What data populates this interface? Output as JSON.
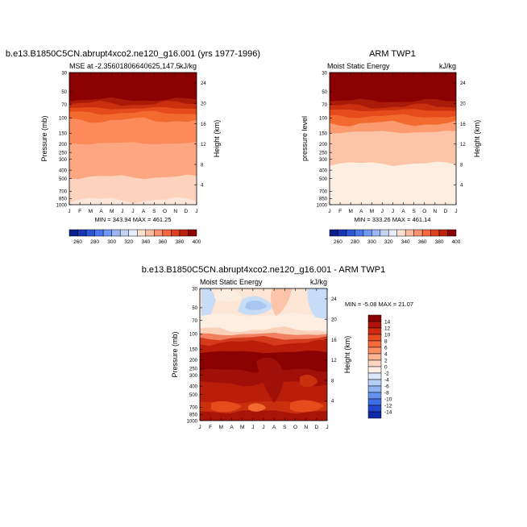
{
  "chart_data": [
    {
      "type": "heatmap",
      "title": "b.e13.B1850C5CN.abrupt4xco2.ne120_g16.001 (yrs 1977-1996)",
      "subtitle_left": "MSE at -2.35601806640625,147.5",
      "subtitle_right": "kJ/kg",
      "ylabel": "Pressure (mb)",
      "ylabel_right": "Height (km)",
      "x_ticks": [
        "J",
        "F",
        "M",
        "A",
        "M",
        "J",
        "J",
        "A",
        "S",
        "O",
        "N",
        "D",
        "J"
      ],
      "y_ticks": [
        "30",
        "50",
        "70",
        "100",
        "150",
        "200",
        "250",
        "300",
        "400",
        "500",
        "700",
        "850",
        "1000"
      ],
      "height_ticks": [
        "24",
        "20",
        "16",
        "12",
        "8",
        "4"
      ],
      "stats": "MIN = 343.94 MAX = 461.25",
      "colorbar_ticks": [
        "260",
        "280",
        "300",
        "320",
        "340",
        "360",
        "380",
        "400"
      ],
      "layers": [
        {
          "top": 0,
          "color": "#8b0000"
        },
        {
          "top": 0.205,
          "color": "#aa1a08"
        },
        {
          "top": 0.235,
          "color": "#c8300e"
        },
        {
          "top": 0.27,
          "color": "#e44c1b"
        },
        {
          "top": 0.305,
          "color": "#f26a2e"
        },
        {
          "top": 0.36,
          "color": "#fc8a5a"
        },
        {
          "top": 0.535,
          "color": "#fda782"
        },
        {
          "top": 0.79,
          "color": "#fdd3bd"
        },
        {
          "top": 0.965,
          "color": "#fde7db"
        }
      ]
    },
    {
      "type": "heatmap",
      "title": "ARM TWP1",
      "subtitle_left": "Moist Static Energy",
      "subtitle_right": "kJ/kg",
      "ylabel": "pressure level",
      "ylabel_right": "Height (km)",
      "x_ticks": [
        "J",
        "F",
        "M",
        "A",
        "M",
        "J",
        "J",
        "A",
        "S",
        "O",
        "N",
        "D",
        "J"
      ],
      "y_ticks": [
        "30",
        "50",
        "70",
        "100",
        "150",
        "200",
        "250",
        "300",
        "400",
        "500",
        "700",
        "850",
        "1000"
      ],
      "height_ticks": [
        "24",
        "20",
        "16",
        "12",
        "8",
        "4"
      ],
      "stats": "MIN = 333.26 MAX = 461.14",
      "colorbar_ticks": [
        "260",
        "280",
        "300",
        "320",
        "340",
        "360",
        "380",
        "400"
      ],
      "layers": [
        {
          "top": 0,
          "color": "#8b0000"
        },
        {
          "top": 0.215,
          "color": "#aa1a08"
        },
        {
          "top": 0.255,
          "color": "#c8300e"
        },
        {
          "top": 0.285,
          "color": "#e44c1b"
        },
        {
          "top": 0.33,
          "color": "#f26a2e"
        },
        {
          "top": 0.385,
          "color": "#fc9a70"
        },
        {
          "top": 0.45,
          "color": "#fdc5a8"
        },
        {
          "top": 0.69,
          "color": "#fdeee2"
        }
      ]
    },
    {
      "type": "heatmap",
      "title": "b.e13.B1850C5CN.abrupt4xco2.ne120_g16.001 - ARM TWP1",
      "subtitle_left": "Moist Static Energy",
      "subtitle_right": "kJ/kg",
      "ylabel": "Pressure (mb)",
      "ylabel_right": "Height (km)",
      "x_ticks": [
        "J",
        "F",
        "M",
        "A",
        "M",
        "J",
        "J",
        "A",
        "S",
        "O",
        "N",
        "D",
        "J"
      ],
      "y_ticks": [
        "30",
        "50",
        "70",
        "100",
        "150",
        "200",
        "250",
        "300",
        "400",
        "500",
        "700",
        "850",
        "1000"
      ],
      "height_ticks": [
        "24",
        "20",
        "16",
        "12",
        "8",
        "4"
      ],
      "stats": "MIN =  -5.08 MAX =  21.07",
      "colorbar_ticks": [
        "14",
        "12",
        "10",
        "8",
        "6",
        "4",
        "2",
        "0",
        "-2",
        "-4",
        "-6",
        "-8",
        "-10",
        "-12",
        "-14"
      ],
      "layers": [
        {
          "top": 0,
          "color": "#fde6d6"
        },
        {
          "top": 0.2,
          "color": "#fdeee2"
        },
        {
          "top": 0.31,
          "color": "#fbd0b9"
        },
        {
          "top": 0.345,
          "color": "#f08060"
        },
        {
          "top": 0.375,
          "color": "#d43a1c"
        },
        {
          "top": 0.41,
          "color": "#b81e0a"
        },
        {
          "top": 0.48,
          "color": "#8b0000"
        },
        {
          "top": 0.62,
          "color": "#a01008"
        },
        {
          "top": 0.72,
          "color": "#b81e0a"
        },
        {
          "top": 0.86,
          "color": "#c8300e"
        },
        {
          "top": 0.93,
          "color": "#a81408"
        }
      ]
    }
  ],
  "colorbar1_colors": [
    "#0a1f8c",
    "#1535b4",
    "#2b56d6",
    "#4a78ee",
    "#7099f5",
    "#9ab6f5",
    "#c2d2f3",
    "#e8eef8",
    "#fde0cf",
    "#fcbb9f",
    "#fc9272",
    "#f6683f",
    "#e0401f",
    "#c0220d",
    "#8b0000"
  ],
  "colorbar3_colors": [
    "#8b0000",
    "#b0130a",
    "#cf2a10",
    "#e84a20",
    "#f56b3c",
    "#fb8e62",
    "#fcb494",
    "#fdd6c2",
    "#fdeee4",
    "#dbe8fa",
    "#b6cff6",
    "#8fb3f3",
    "#6591ef",
    "#3e6ee6",
    "#2448cc",
    "#0f2aa8"
  ],
  "overlays": {
    "blue_patches_color": "#c6dcf7",
    "blue_patches_dark": "#a9c6f2",
    "cream_color": "#fdeee2"
  }
}
